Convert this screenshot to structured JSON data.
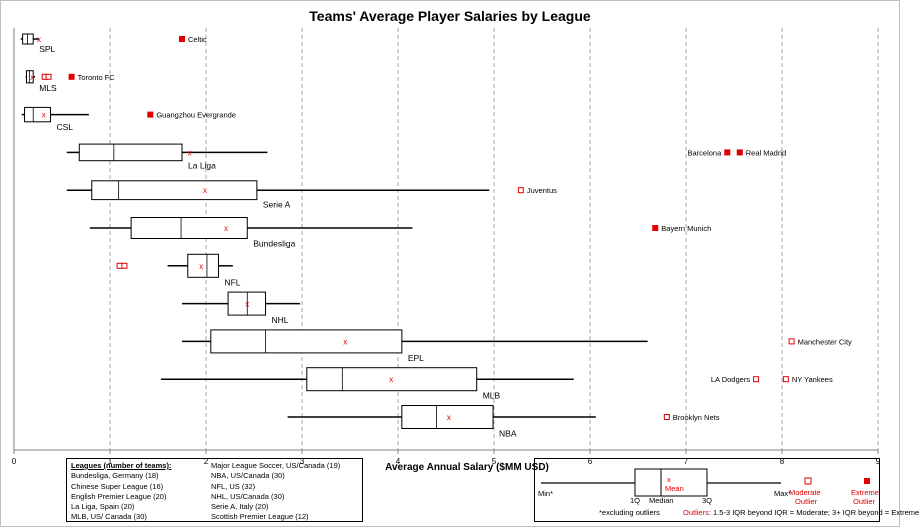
{
  "title": "Teams' Average Player Salaries by League",
  "chart_data": {
    "type": "boxplot",
    "title": "Teams' Average Player Salaries by League",
    "xlabel": "Average Annual Salary ($MM USD)",
    "ylabel": "",
    "xlim": [
      0,
      9
    ],
    "xticks": [
      "0",
      "1",
      "2",
      "3",
      "4",
      "5",
      "6",
      "7",
      "8",
      "9"
    ],
    "grid": "vertical dashed",
    "leagues": [
      {
        "label": "SPL",
        "min": 0.07,
        "q1": 0.09,
        "median": 0.14,
        "q3": 0.2,
        "max": 0.26,
        "mean": 0.26,
        "moderate_outliers": [],
        "extreme_outliers": [
          {
            "name": "Celtic",
            "value": 1.75
          }
        ]
      },
      {
        "label": "MLS",
        "min": 0.12,
        "q1": 0.13,
        "median": 0.16,
        "q3": 0.2,
        "max": 0.22,
        "mean": 0.19,
        "moderate_outliers": [
          {
            "name": "",
            "value": 0.32
          },
          {
            "name": "",
            "value": 0.36
          }
        ],
        "extreme_outliers": [
          {
            "name": "Toronto FC",
            "value": 0.6
          }
        ]
      },
      {
        "label": "CSL",
        "min": 0.08,
        "q1": 0.11,
        "median": 0.2,
        "q3": 0.38,
        "max": 0.78,
        "mean": 0.31,
        "moderate_outliers": [],
        "extreme_outliers": [
          {
            "name": "Guangzhou Evergrande",
            "value": 1.42
          }
        ]
      },
      {
        "label": "La Liga",
        "min": 0.55,
        "q1": 0.68,
        "median": 1.04,
        "q3": 1.75,
        "max": 2.64,
        "mean": 1.83,
        "moderate_outliers": [],
        "extreme_outliers": [
          {
            "name": "Barcelona",
            "value": 7.43
          },
          {
            "name": "Real Madrid",
            "value": 7.56
          }
        ]
      },
      {
        "label": "Serie A",
        "min": 0.55,
        "q1": 0.81,
        "median": 1.09,
        "q3": 2.53,
        "max": 4.95,
        "mean": 1.99,
        "moderate_outliers": [
          {
            "name": "Juventus",
            "value": 5.28
          }
        ],
        "extreme_outliers": []
      },
      {
        "label": "Bundesliga",
        "min": 0.79,
        "q1": 1.22,
        "median": 1.74,
        "q3": 2.43,
        "max": 4.15,
        "mean": 2.21,
        "moderate_outliers": [],
        "extreme_outliers": [
          {
            "name": "Bayern Munich",
            "value": 6.68
          }
        ]
      },
      {
        "label": "NFL",
        "min": 1.6,
        "q1": 1.81,
        "median": 2.01,
        "q3": 2.13,
        "max": 2.28,
        "mean": 1.95,
        "moderate_outliers": [
          {
            "name": "",
            "value": 1.1
          },
          {
            "name": "",
            "value": 1.15
          }
        ],
        "extreme_outliers": []
      },
      {
        "label": "NHL",
        "min": 1.75,
        "q1": 2.23,
        "median": 2.43,
        "q3": 2.62,
        "max": 2.98,
        "mean": 2.43,
        "moderate_outliers": [],
        "extreme_outliers": []
      },
      {
        "label": "EPL",
        "min": 1.75,
        "q1": 2.05,
        "median": 2.62,
        "q3": 4.04,
        "max": 6.6,
        "mean": 3.45,
        "moderate_outliers": [
          {
            "name": "Manchester City",
            "value": 8.1
          }
        ],
        "extreme_outliers": []
      },
      {
        "label": "MLB",
        "min": 1.53,
        "q1": 3.05,
        "median": 3.42,
        "q3": 4.82,
        "max": 5.83,
        "mean": 3.93,
        "moderate_outliers": [
          {
            "name": "LA Dodgers",
            "value": 7.73
          },
          {
            "name": "NY Yankees",
            "value": 8.04
          }
        ],
        "extreme_outliers": []
      },
      {
        "label": "NBA",
        "min": 2.85,
        "q1": 4.04,
        "median": 4.4,
        "q3": 4.99,
        "max": 6.06,
        "mean": 4.53,
        "moderate_outliers": [
          {
            "name": "Brooklyn Nets",
            "value": 6.8
          }
        ],
        "extreme_outliers": []
      }
    ]
  },
  "legend": {
    "heading": "Leagues (number of teams):",
    "col1": [
      "Bundesliga, Germany (18)",
      "Chinese Super League (16)",
      "English Premier League (20)",
      "La Liga, Spain (20)",
      "MLB, US/ Canada (30)"
    ],
    "col2": [
      "Major League Soccer, US/Canada (19)",
      "NBA, US/Canada (30)",
      "NFL, US (32)",
      "NHL, US/Canada (30)",
      "Serie A, Italy (20)",
      "Scottish Premier League (12)"
    ]
  },
  "key": {
    "min_label": "Min*",
    "max_label": "Max*",
    "q1_label": "1Q",
    "q3_label": "3Q",
    "median_label": "Median",
    "mean_label": "Mean",
    "moderate_label_1": "Moderate",
    "moderate_label_2": "Outlier",
    "extreme_label_1": "Extreme",
    "extreme_label_2": "Outlier",
    "excluding_note": "*excluding outliers",
    "outliers_word": "Outliers:",
    "outliers_note": "1.5-3 IQR beyond IQR = Moderate; 3+ IQR beyond = Extreme",
    "accent_color": "#e00000"
  }
}
